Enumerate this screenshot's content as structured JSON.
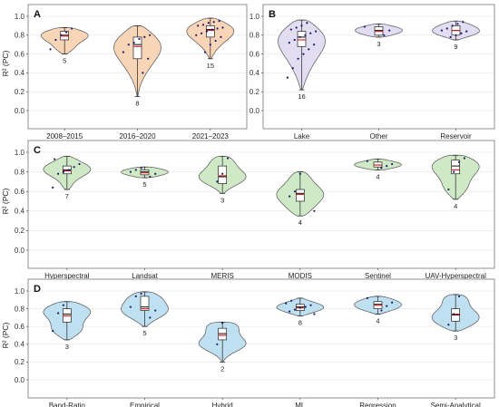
{
  "colors": {
    "A": "#f9d5b8",
    "B": "#e3ddf2",
    "C": "#cfe8c5",
    "D": "#bfe0f0",
    "mean_line": "#d11f1f",
    "points": "#1a1a6e"
  },
  "chart_data": [
    {
      "panel": "A",
      "type": "violin",
      "ylabel": "R² (PC)",
      "ylim": [
        0.0,
        1.0
      ],
      "yticks": [
        "0.0",
        "0.2",
        "0.4",
        "0.6",
        "0.8",
        "1.0"
      ],
      "categories": [
        {
          "label": "2008–2015",
          "n": "5",
          "min": 0.6,
          "q1": 0.75,
          "median": 0.8,
          "q3": 0.84,
          "max": 0.88,
          "mean": 0.79,
          "points": [
            0.65,
            0.75,
            0.8,
            0.83,
            0.87
          ]
        },
        {
          "label": "2016–2020",
          "n": "8",
          "min": 0.15,
          "q1": 0.55,
          "median": 0.7,
          "q3": 0.78,
          "max": 0.9,
          "mean": 0.68,
          "points": [
            0.4,
            0.55,
            0.62,
            0.7,
            0.72,
            0.76,
            0.78,
            0.8
          ]
        },
        {
          "label": "2021–2023",
          "n": "15",
          "min": 0.55,
          "q1": 0.78,
          "median": 0.86,
          "q3": 0.9,
          "max": 0.98,
          "mean": 0.85,
          "points": [
            0.62,
            0.7,
            0.74,
            0.78,
            0.8,
            0.82,
            0.84,
            0.86,
            0.87,
            0.88,
            0.9,
            0.91,
            0.93,
            0.94,
            0.95
          ]
        }
      ]
    },
    {
      "panel": "B",
      "type": "violin",
      "ylabel": "",
      "ylim": [
        0.0,
        1.0
      ],
      "yticks": [
        "0.0",
        "0.2",
        "0.4",
        "0.6",
        "0.8",
        "1.0"
      ],
      "categories": [
        {
          "label": "Lake",
          "n": "16",
          "min": 0.22,
          "q1": 0.68,
          "median": 0.78,
          "q3": 0.84,
          "max": 0.96,
          "mean": 0.75,
          "points": [
            0.35,
            0.45,
            0.55,
            0.6,
            0.65,
            0.7,
            0.72,
            0.75,
            0.78,
            0.8,
            0.82,
            0.84,
            0.86,
            0.88,
            0.9,
            0.93
          ]
        },
        {
          "label": "Other",
          "n": "3",
          "min": 0.78,
          "q1": 0.8,
          "median": 0.85,
          "q3": 0.89,
          "max": 0.92,
          "mean": 0.84,
          "points": [
            0.8,
            0.85,
            0.89
          ]
        },
        {
          "label": "Reservoir",
          "n": "9",
          "min": 0.75,
          "q1": 0.8,
          "median": 0.85,
          "q3": 0.9,
          "max": 0.95,
          "mean": 0.85,
          "points": [
            0.78,
            0.8,
            0.82,
            0.84,
            0.85,
            0.87,
            0.9,
            0.92,
            0.94
          ]
        }
      ]
    },
    {
      "panel": "C",
      "type": "violin",
      "ylabel": "R² (PC)",
      "ylim": [
        0.0,
        1.0
      ],
      "yticks": [
        "0.0",
        "0.2",
        "0.4",
        "0.6",
        "0.8",
        "1.0"
      ],
      "categories": [
        {
          "label": "Hyperspectral",
          "n": "7",
          "min": 0.62,
          "q1": 0.78,
          "median": 0.82,
          "q3": 0.86,
          "max": 0.96,
          "mean": 0.81,
          "points": [
            0.64,
            0.78,
            0.8,
            0.82,
            0.85,
            0.88,
            0.93
          ]
        },
        {
          "label": "Landsat",
          "n": "5",
          "min": 0.74,
          "q1": 0.77,
          "median": 0.8,
          "q3": 0.82,
          "max": 0.85,
          "mean": 0.79,
          "points": [
            0.75,
            0.78,
            0.8,
            0.82,
            0.84
          ]
        },
        {
          "label": "MERIS",
          "n": "3",
          "min": 0.58,
          "q1": 0.68,
          "median": 0.75,
          "q3": 0.86,
          "max": 0.96,
          "mean": 0.76,
          "points": [
            0.7,
            0.78,
            0.94
          ]
        },
        {
          "label": "MODIS",
          "n": "4",
          "min": 0.35,
          "q1": 0.5,
          "median": 0.58,
          "q3": 0.62,
          "max": 0.8,
          "mean": 0.57,
          "points": [
            0.4,
            0.55,
            0.6,
            0.78
          ]
        },
        {
          "label": "Sentinel",
          "n": "4",
          "min": 0.82,
          "q1": 0.85,
          "median": 0.87,
          "q3": 0.9,
          "max": 0.93,
          "mean": 0.87,
          "points": [
            0.84,
            0.86,
            0.88,
            0.91
          ]
        },
        {
          "label": "UAV-Hyperspectral",
          "n": "4",
          "min": 0.52,
          "q1": 0.78,
          "median": 0.86,
          "q3": 0.92,
          "max": 0.97,
          "mean": 0.82,
          "points": [
            0.62,
            0.8,
            0.9,
            0.94
          ]
        }
      ]
    },
    {
      "panel": "D",
      "type": "violin",
      "ylabel": "R² (PC)",
      "ylim": [
        0.0,
        1.0
      ],
      "yticks": [
        "0.0",
        "0.2",
        "0.4",
        "0.6",
        "0.8",
        "1.0"
      ],
      "categories": [
        {
          "label": "Band-Ratio",
          "n": "3",
          "min": 0.45,
          "q1": 0.65,
          "median": 0.74,
          "q3": 0.8,
          "max": 0.88,
          "mean": 0.72,
          "points": [
            0.55,
            0.75,
            0.84
          ]
        },
        {
          "label": "Empirical",
          "n": "5",
          "min": 0.6,
          "q1": 0.78,
          "median": 0.82,
          "q3": 0.94,
          "max": 0.99,
          "mean": 0.8,
          "points": [
            0.7,
            0.78,
            0.82,
            0.94,
            0.97
          ]
        },
        {
          "label": "Hybrid",
          "n": "2",
          "min": 0.2,
          "q1": 0.45,
          "median": 0.52,
          "q3": 0.58,
          "max": 0.65,
          "mean": 0.5,
          "points": [
            0.4,
            0.64
          ]
        },
        {
          "label": "ML",
          "n": "8",
          "min": 0.72,
          "q1": 0.78,
          "median": 0.82,
          "q3": 0.85,
          "max": 0.92,
          "mean": 0.81,
          "points": [
            0.74,
            0.77,
            0.79,
            0.81,
            0.82,
            0.84,
            0.86,
            0.89
          ]
        },
        {
          "label": "Regression",
          "n": "4",
          "min": 0.74,
          "q1": 0.8,
          "median": 0.85,
          "q3": 0.88,
          "max": 0.94,
          "mean": 0.84,
          "points": [
            0.78,
            0.83,
            0.87,
            0.92
          ]
        },
        {
          "label": "Semi-Analytical",
          "n": "3",
          "min": 0.55,
          "q1": 0.66,
          "median": 0.73,
          "q3": 0.8,
          "max": 0.96,
          "mean": 0.74,
          "points": [
            0.62,
            0.74,
            0.94
          ]
        }
      ]
    }
  ]
}
